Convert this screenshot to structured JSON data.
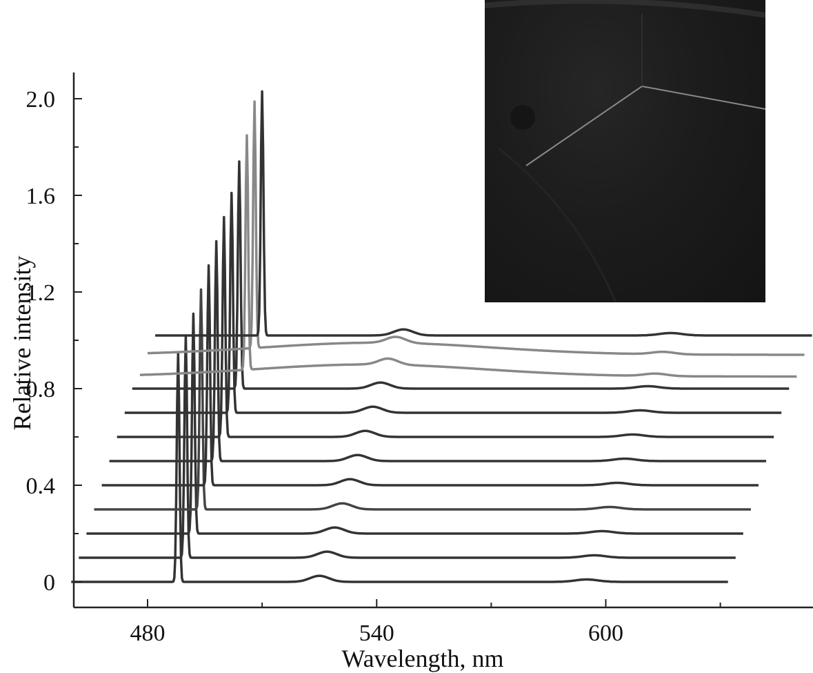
{
  "chart_data": {
    "type": "line",
    "title": "",
    "xlabel": "Wavelength, nm",
    "ylabel": "Relative intensity",
    "x_ticks": [
      480,
      540,
      600
    ],
    "y_ticks": [
      0,
      0.4,
      0.8,
      1.2,
      1.6,
      2.0
    ],
    "y_tick_labels": [
      "0",
      "0.4",
      "0.8",
      "1.2",
      "1.6",
      "2.0"
    ],
    "x_tick_labels": [
      "480",
      "540",
      "600"
    ],
    "style": "waterfall (each spectrum offset up and to the right)",
    "grid": false,
    "series": [
      {
        "x_shift_nm": 0,
        "baseline": 0.0,
        "peak_position_nm": 488,
        "peak_top": 0.95,
        "color": "#333333"
      },
      {
        "x_shift_nm": 2,
        "baseline": 0.1,
        "peak_position_nm": 488,
        "peak_top": 1.02,
        "color": "#333333"
      },
      {
        "x_shift_nm": 4,
        "baseline": 0.2,
        "peak_position_nm": 488,
        "peak_top": 1.11,
        "color": "#333333"
      },
      {
        "x_shift_nm": 6,
        "baseline": 0.3,
        "peak_position_nm": 488,
        "peak_top": 1.21,
        "color": "#444444"
      },
      {
        "x_shift_nm": 8,
        "baseline": 0.4,
        "peak_position_nm": 488,
        "peak_top": 1.31,
        "color": "#333333"
      },
      {
        "x_shift_nm": 10,
        "baseline": 0.5,
        "peak_position_nm": 488,
        "peak_top": 1.41,
        "color": "#333333"
      },
      {
        "x_shift_nm": 12,
        "baseline": 0.6,
        "peak_position_nm": 488,
        "peak_top": 1.51,
        "color": "#333333"
      },
      {
        "x_shift_nm": 14,
        "baseline": 0.7,
        "peak_position_nm": 488,
        "peak_top": 1.61,
        "color": "#333333"
      },
      {
        "x_shift_nm": 16,
        "baseline": 0.8,
        "peak_position_nm": 488,
        "peak_top": 1.74,
        "color": "#333333"
      },
      {
        "x_shift_nm": 18,
        "baseline": 0.85,
        "peak_position_nm": 488,
        "peak_top": 1.82,
        "color": "#888888"
      },
      {
        "x_shift_nm": 20,
        "baseline": 0.94,
        "peak_position_nm": 488,
        "peak_top": 1.96,
        "color": "#888888"
      },
      {
        "x_shift_nm": 22,
        "baseline": 1.02,
        "peak_position_nm": 488,
        "peak_top": 2.03,
        "color": "#333333"
      }
    ]
  }
}
